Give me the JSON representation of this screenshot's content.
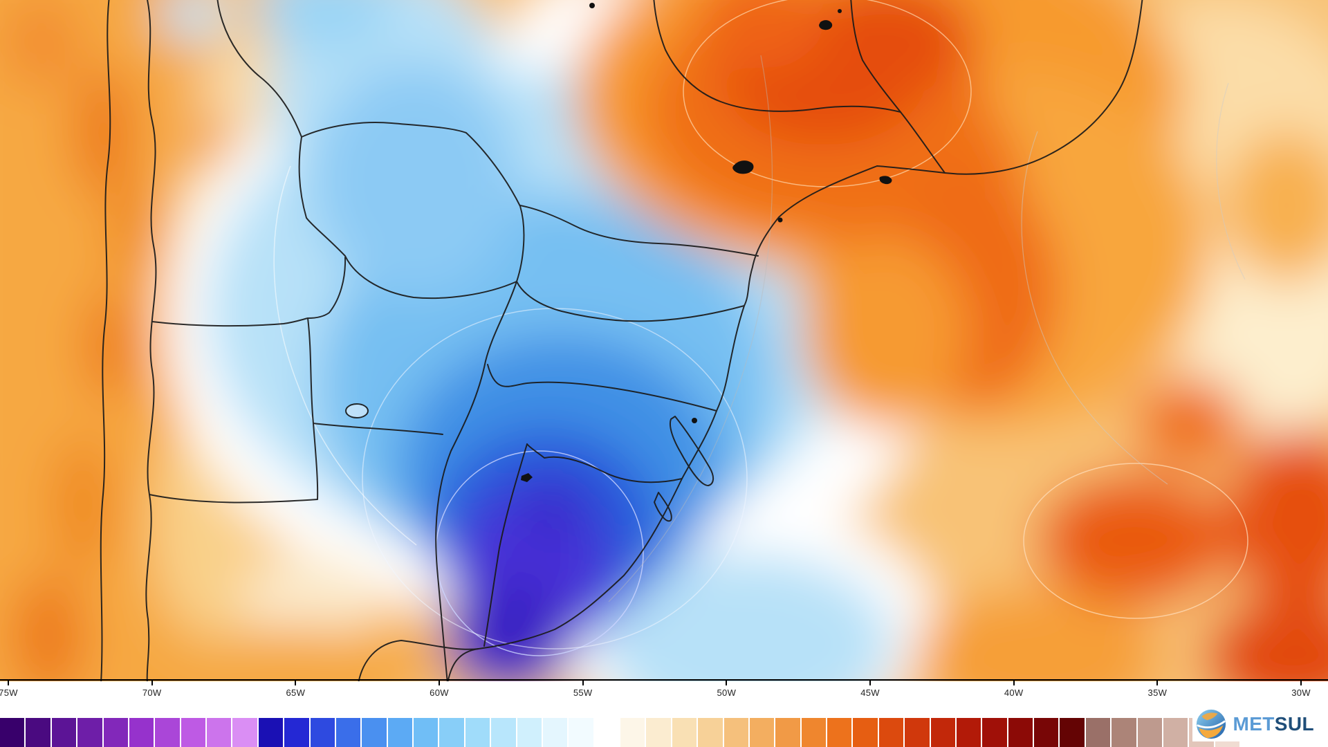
{
  "axis": {
    "x_ticks": [
      "75W",
      "70W",
      "65W",
      "60W",
      "55W",
      "50W",
      "45W",
      "40W",
      "35W",
      "30W"
    ]
  },
  "colorbar": {
    "colors": [
      "#38006b",
      "#4a0a80",
      "#5c1496",
      "#6e1ea8",
      "#8228ba",
      "#9632cc",
      "#aa46d8",
      "#be5ae4",
      "#cc74ec",
      "#da8ef4",
      "#1a10b4",
      "#2428d4",
      "#2e4ae0",
      "#3a6eea",
      "#4a90f0",
      "#5caaf4",
      "#70bef6",
      "#88cef8",
      "#a0dcfa",
      "#b8e6fc",
      "#d0f0fd",
      "#e4f6fe",
      "#f2fbff",
      "#ffffff",
      "#fdf6e8",
      "#fbecd0",
      "#f9e0b4",
      "#f7d198",
      "#f5c07c",
      "#f3ae60",
      "#f19a46",
      "#ef862e",
      "#ed721c",
      "#e65e12",
      "#dc4a0e",
      "#d0380c",
      "#c2280a",
      "#b21a08",
      "#a01008",
      "#8c0a06",
      "#780606",
      "#640404",
      "#9a7068",
      "#ac8478",
      "#be9a8e",
      "#d0b0a4",
      "#e2c6ba",
      "#f0dcd2"
    ]
  },
  "map": {
    "field_colors": {
      "warm_base": "#f8c276",
      "warm_strong": "#f07018",
      "warm_core": "#e54d0e",
      "cold_light": "#b7e1f8",
      "cold_medium": "#4190e5",
      "cold_deep": "#2559da",
      "cold_core": "#4a30d8",
      "neutral": "#ffffff",
      "border": "#1a1a1a"
    }
  },
  "logo": {
    "met": "MET",
    "sul": "SUL",
    "met_color": "#5b9bd5",
    "sul_color": "#1f4e79"
  },
  "chart_data": {
    "type": "heatmap",
    "title": "",
    "x_axis_ticks": [
      "75W",
      "70W",
      "65W",
      "60W",
      "55W",
      "50W",
      "45W",
      "40W",
      "35W",
      "30W"
    ],
    "legend_position": "bottom",
    "regions": [
      {
        "area": "southeastern Brazil (Sao Paulo / Minas Gerais)",
        "anomaly": "strong warm (orange-red core)"
      },
      {
        "area": "Uruguay / Rio Grande do Sul / northeastern Argentina",
        "anomaly": "strong cold (deep blue-indigo core)"
      },
      {
        "area": "Andes / western Argentina strip",
        "anomaly": "warm (orange band with dark streaks)"
      },
      {
        "area": "Paraguay / central band",
        "anomaly": "weak cold (pale blue-white)"
      },
      {
        "area": "eastern Atlantic sector",
        "anomaly": "warm (orange with red blobs)"
      }
    ]
  }
}
